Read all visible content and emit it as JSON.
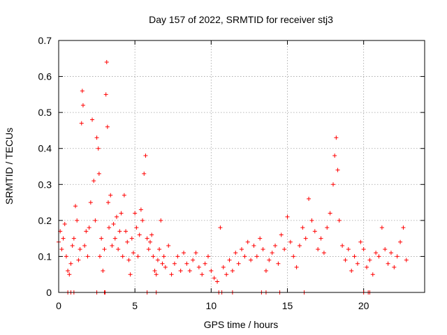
{
  "chart_data": {
    "type": "scatter",
    "title": "Day 157 of 2022, SRMTID for receiver stj3",
    "xlabel": "GPS time / hours",
    "ylabel": "SRMTID / TECUs",
    "xlim": [
      0,
      24
    ],
    "ylim": [
      0,
      0.7
    ],
    "xticks": [
      0,
      5,
      10,
      15,
      20
    ],
    "xtick_labels": [
      "0",
      "5",
      "10",
      "15",
      "20"
    ],
    "yticks": [
      0,
      0.1,
      0.2,
      0.3,
      0.4,
      0.5,
      0.6,
      0.7
    ],
    "ytick_labels": [
      "0",
      "0.1",
      "0.2",
      "0.3",
      "0.4",
      "0.5",
      "0.6",
      "0.7"
    ],
    "grid": true,
    "marker": "+",
    "series": [
      {
        "name": "SRMTID",
        "color": "#ff0000",
        "x": [
          0.0,
          0.1,
          0.2,
          0.3,
          0.4,
          0.5,
          0.6,
          0.7,
          0.8,
          0.9,
          1.0,
          1.1,
          1.2,
          1.3,
          1.4,
          1.5,
          1.55,
          1.6,
          1.7,
          1.8,
          1.9,
          2.0,
          2.1,
          2.2,
          2.3,
          2.4,
          2.5,
          2.6,
          2.65,
          2.7,
          2.8,
          2.9,
          3.0,
          3.1,
          3.15,
          3.2,
          3.25,
          3.3,
          3.4,
          3.5,
          3.6,
          3.7,
          3.8,
          3.9,
          4.0,
          4.1,
          4.2,
          4.3,
          4.4,
          4.5,
          4.6,
          4.7,
          4.8,
          4.9,
          5.0,
          5.1,
          5.2,
          5.3,
          5.4,
          5.5,
          5.6,
          5.7,
          5.8,
          5.9,
          6.0,
          6.1,
          6.2,
          6.3,
          6.4,
          6.5,
          6.6,
          6.7,
          6.8,
          6.9,
          7.0,
          7.2,
          7.4,
          7.6,
          7.8,
          8.0,
          8.2,
          8.4,
          8.6,
          8.8,
          9.0,
          9.2,
          9.4,
          9.6,
          9.8,
          10.0,
          10.2,
          10.4,
          10.6,
          10.8,
          11.0,
          11.2,
          11.4,
          11.6,
          11.8,
          12.0,
          12.2,
          12.4,
          12.6,
          12.8,
          13.0,
          13.2,
          13.4,
          13.6,
          13.8,
          14.0,
          14.2,
          14.4,
          14.6,
          14.8,
          15.0,
          15.2,
          15.4,
          15.6,
          15.8,
          16.0,
          16.2,
          16.4,
          16.6,
          16.8,
          17.0,
          17.2,
          17.4,
          17.6,
          17.8,
          18.0,
          18.1,
          18.2,
          18.3,
          18.4,
          18.6,
          18.8,
          19.0,
          19.2,
          19.4,
          19.6,
          19.8,
          20.0,
          20.2,
          20.4,
          20.6,
          20.8,
          21.0,
          21.2,
          21.4,
          21.6,
          21.8,
          22.0,
          22.2,
          22.4,
          22.6,
          22.8
        ],
        "y": [
          0.14,
          0.17,
          0.12,
          0.15,
          0.19,
          0.1,
          0.06,
          0.05,
          0.08,
          0.13,
          0.15,
          0.24,
          0.2,
          0.09,
          0.12,
          0.47,
          0.56,
          0.52,
          0.13,
          0.17,
          0.1,
          0.18,
          0.25,
          0.48,
          0.31,
          0.2,
          0.43,
          0.4,
          0.33,
          0.1,
          0.15,
          0.06,
          0.12,
          0.55,
          0.64,
          0.46,
          0.25,
          0.18,
          0.27,
          0.13,
          0.19,
          0.15,
          0.21,
          0.12,
          0.17,
          0.22,
          0.1,
          0.27,
          0.17,
          0.14,
          0.09,
          0.05,
          0.15,
          0.11,
          0.22,
          0.18,
          0.1,
          0.16,
          0.23,
          0.2,
          0.33,
          0.38,
          0.15,
          0.12,
          0.14,
          0.16,
          0.1,
          0.06,
          0.05,
          0.09,
          0.12,
          0.2,
          0.08,
          0.1,
          0.07,
          0.13,
          0.05,
          0.08,
          0.1,
          0.06,
          0.11,
          0.08,
          0.06,
          0.09,
          0.11,
          0.07,
          0.05,
          0.08,
          0.1,
          0.06,
          0.04,
          0.03,
          0.18,
          0.07,
          0.05,
          0.09,
          0.06,
          0.11,
          0.08,
          0.12,
          0.1,
          0.14,
          0.09,
          0.13,
          0.1,
          0.15,
          0.12,
          0.06,
          0.09,
          0.11,
          0.13,
          0.08,
          0.16,
          0.12,
          0.21,
          0.14,
          0.1,
          0.07,
          0.13,
          0.18,
          0.15,
          0.26,
          0.2,
          0.17,
          0.12,
          0.15,
          0.11,
          0.18,
          0.22,
          0.3,
          0.38,
          0.43,
          0.34,
          0.2,
          0.13,
          0.09,
          0.12,
          0.06,
          0.1,
          0.08,
          0.14,
          0.12,
          0.07,
          0.09,
          0.05,
          0.11,
          0.1,
          0.18,
          0.12,
          0.08,
          0.11,
          0.07,
          0.1,
          0.14,
          0.18,
          0.09
        ]
      }
    ],
    "rug_x": [
      0.6,
      0.8,
      1.0,
      2.5,
      3.0,
      3.05,
      5.8,
      6.4,
      10.5,
      10.7,
      11.4,
      13.3,
      13.6,
      14.5,
      16.1,
      20.0,
      20.3,
      20.4
    ]
  }
}
